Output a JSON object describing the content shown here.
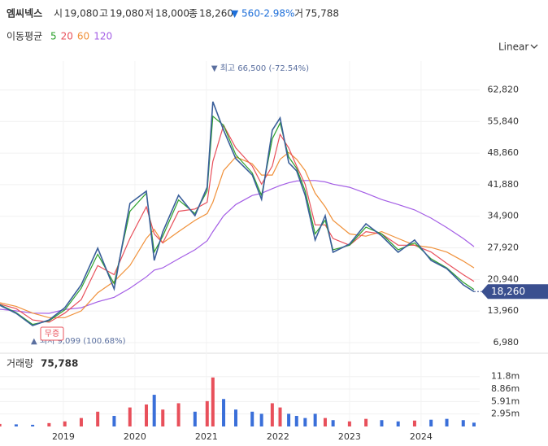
{
  "header": {
    "name": "엠씨넥스",
    "open_label": "시",
    "open": "19,080",
    "high_label": "고",
    "high": "19,080",
    "low_label": "저",
    "low": "18,000",
    "close_label": "종",
    "close": "18,260",
    "change": "▼ 560",
    "change_pct": "-2.98%",
    "volume_label": "거",
    "volume": "75,788"
  },
  "ma_label": "이동평균",
  "scale_mode": "Linear",
  "chart_data": {
    "type": "line",
    "x": [
      2018.11,
      2018.34,
      2018.57,
      2018.8,
      2019.02,
      2019.25,
      2019.48,
      2019.71,
      2019.93,
      2020.16,
      2020.27,
      2020.39,
      2020.61,
      2020.84,
      2021.01,
      2021.09,
      2021.24,
      2021.41,
      2021.64,
      2021.77,
      2021.92,
      2022.03,
      2022.15,
      2022.26,
      2022.38,
      2022.52,
      2022.66,
      2022.77,
      2023.0,
      2023.23,
      2023.45,
      2023.68,
      2023.91,
      2024.14,
      2024.36,
      2024.59,
      2024.74
    ],
    "values": [
      15250,
      13460,
      10760,
      12000,
      14700,
      19750,
      27850,
      18850,
      37740,
      40440,
      25150,
      31450,
      39540,
      35040,
      41340,
      60230,
      53930,
      47640,
      44040,
      38640,
      53930,
      56630,
      46740,
      44940,
      39540,
      29650,
      35040,
      26950,
      28750,
      33240,
      30550,
      26950,
      29650,
      25150,
      23350,
      19750,
      18260
    ],
    "color": "#3a5f9a",
    "series": [
      {
        "name": "5",
        "color": "#2ca02c",
        "values": [
          15400,
          13600,
          11000,
          11800,
          14200,
          19000,
          26500,
          20000,
          36000,
          40000,
          27000,
          30500,
          38500,
          35500,
          40500,
          57000,
          55000,
          48500,
          44500,
          39500,
          52000,
          55500,
          48000,
          45500,
          40500,
          31000,
          34000,
          27500,
          28500,
          32500,
          31000,
          27500,
          29000,
          25500,
          23500,
          20300,
          18700
        ]
      },
      {
        "name": "20",
        "color": "#e8505b",
        "values": [
          15500,
          14500,
          12000,
          11500,
          13500,
          16500,
          24000,
          22000,
          30000,
          37000,
          31000,
          29000,
          36000,
          36500,
          38000,
          47000,
          55000,
          50000,
          46000,
          42000,
          46000,
          53000,
          50000,
          46000,
          42000,
          33000,
          33000,
          30000,
          28500,
          31500,
          31000,
          28500,
          28500,
          27000,
          24500,
          22000,
          20500
        ]
      },
      {
        "name": "60",
        "color": "#f0913a",
        "values": [
          15800,
          15000,
          13500,
          12500,
          12500,
          14000,
          18000,
          20500,
          24000,
          30000,
          32000,
          29000,
          31500,
          34000,
          35500,
          38000,
          45000,
          48000,
          46500,
          44000,
          44000,
          47500,
          49000,
          47500,
          45000,
          40000,
          37000,
          34000,
          31000,
          30500,
          31500,
          30000,
          28500,
          28000,
          27000,
          25000,
          23500
        ]
      },
      {
        "name": "120",
        "color": "#a45ee5",
        "values": [
          14360,
          14000,
          13500,
          13460,
          14300,
          14700,
          16000,
          17000,
          19000,
          21500,
          23000,
          23500,
          25500,
          27500,
          29500,
          31500,
          35000,
          37500,
          39500,
          40000,
          41000,
          41700,
          42300,
          42700,
          42800,
          42800,
          42500,
          42000,
          41300,
          40000,
          38600,
          37500,
          36300,
          34500,
          32400,
          30000,
          28200
        ]
      }
    ],
    "xlim": [
      2018.114,
      2024.82
    ],
    "xticks": [
      2019,
      2020,
      2021,
      2022,
      2023,
      2024
    ],
    "ylim": [
      5000,
      69200
    ],
    "yticks": [
      {
        "value": 6980,
        "label": "6,980"
      },
      {
        "value": 13960,
        "label": "13,960"
      },
      {
        "value": 20940,
        "label": "20,940"
      },
      {
        "value": 27920,
        "label": "27,920"
      },
      {
        "value": 34900,
        "label": "34,900"
      },
      {
        "value": 41880,
        "label": "41,880"
      },
      {
        "value": 48860,
        "label": "48,860"
      },
      {
        "value": 55840,
        "label": "55,840"
      },
      {
        "value": 62820,
        "label": "62,820"
      }
    ],
    "annotations": {
      "high": "▼ 최고 66,500 (-72.54%)",
      "low": "▲ 최저 9,099 (100.68%)",
      "event": "무증"
    },
    "volume": {
      "label": "거래량",
      "last": "75,788",
      "values": [
        0.6,
        0.5,
        0.4,
        0.8,
        1.2,
        2.0,
        3.5,
        2.5,
        4.5,
        5.2,
        7.5,
        4.0,
        5.5,
        3.5,
        6.0,
        11.6,
        6.5,
        4.0,
        3.5,
        3.0,
        5.5,
        4.5,
        3.0,
        2.5,
        2.0,
        3.0,
        2.0,
        1.5,
        1.2,
        1.8,
        1.5,
        1.2,
        1.4,
        1.6,
        1.8,
        1.5,
        0.9
      ],
      "ylim": [
        0,
        13.1
      ],
      "yticks": [
        {
          "value": 2.95,
          "label": "2.95m"
        },
        {
          "value": 5.91,
          "label": "5.91m"
        },
        {
          "value": 8.86,
          "label": "8.86m"
        },
        {
          "value": 11.8,
          "label": "11.8m"
        }
      ]
    }
  }
}
